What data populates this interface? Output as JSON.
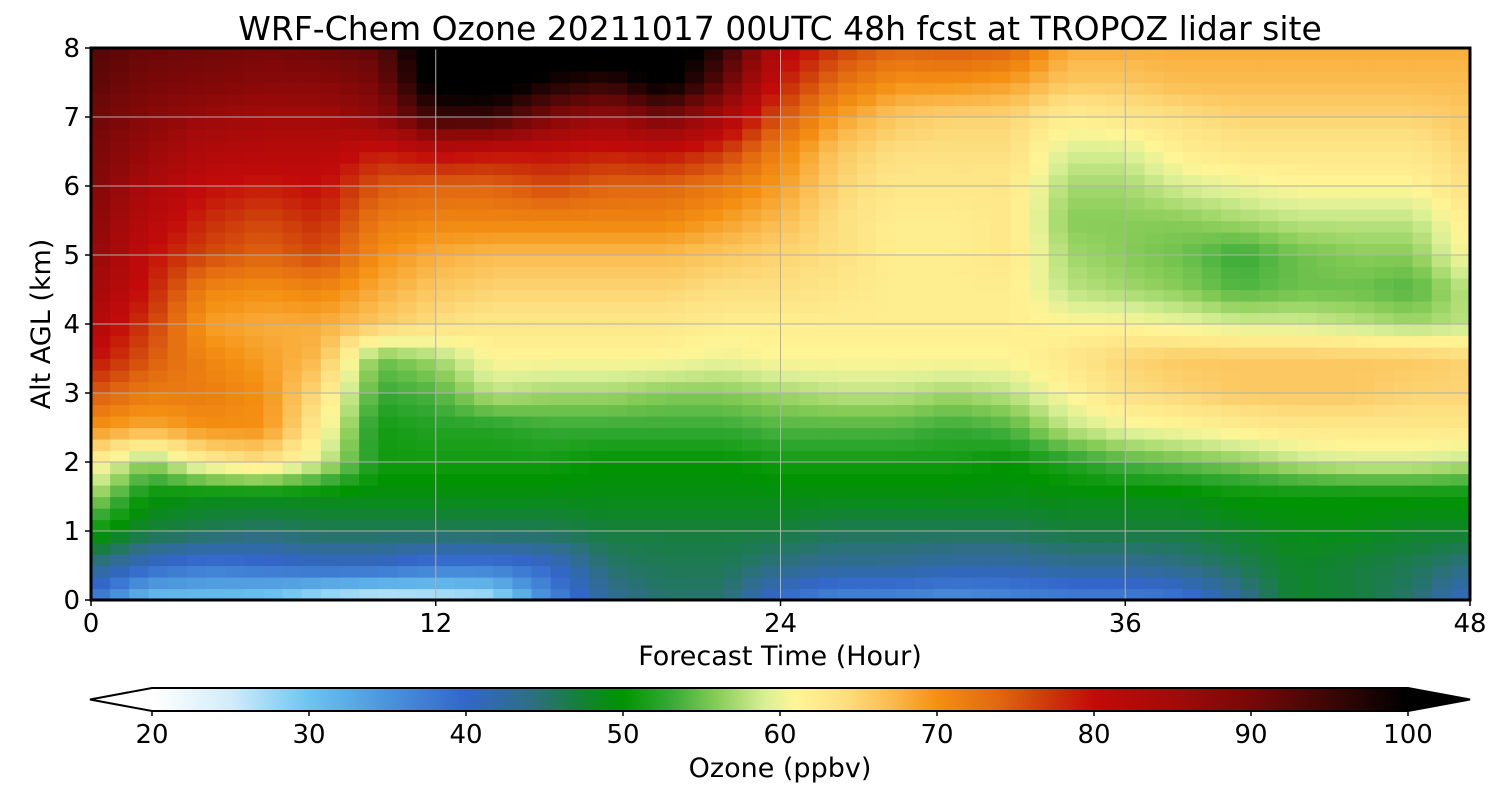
{
  "chart_data": {
    "type": "heatmap",
    "title": "WRF-Chem Ozone  20211017 00UTC 48h fcst at TROPOZ lidar site",
    "xlabel": "Forecast Time (Hour)",
    "ylabel": "Alt AGL (km)",
    "xlim": [
      0,
      48
    ],
    "ylim": [
      0,
      8
    ],
    "x_ticks": [
      "0",
      "12",
      "24",
      "36",
      "48"
    ],
    "y_ticks": [
      "0",
      "1",
      "2",
      "3",
      "4",
      "5",
      "6",
      "7",
      "8"
    ],
    "grid": true,
    "x": [
      0,
      2,
      4,
      6,
      8,
      10,
      12,
      14,
      16,
      18,
      20,
      22,
      24,
      26,
      28,
      30,
      32,
      34,
      36,
      38,
      40,
      42,
      44,
      46,
      48
    ],
    "y": [
      0,
      0.5,
      1,
      1.5,
      2,
      2.5,
      3,
      3.5,
      4,
      4.5,
      5,
      5.5,
      6,
      6.5,
      7,
      7.5,
      8
    ],
    "z": [
      [
        38,
        30,
        30,
        29,
        26,
        24,
        25,
        26,
        36,
        43,
        45,
        45,
        39,
        36,
        36,
        35,
        36,
        37,
        37,
        38,
        43,
        48,
        47,
        45,
        40
      ],
      [
        44,
        40,
        38,
        39,
        40,
        40,
        38,
        38,
        40,
        45,
        46,
        46,
        44,
        43,
        43,
        42,
        42,
        43,
        43,
        44,
        46,
        48,
        47,
        46,
        44
      ],
      [
        51,
        47,
        46,
        45,
        46,
        46,
        46,
        46,
        46,
        47,
        47,
        47,
        47,
        46,
        46,
        46,
        46,
        47,
        47,
        47,
        48,
        49,
        49,
        48,
        48
      ],
      [
        57,
        50,
        49,
        49,
        49,
        49,
        49,
        49,
        49,
        49,
        49,
        49,
        49,
        49,
        49,
        49,
        49,
        49,
        49,
        49,
        50,
        50,
        50,
        50,
        50
      ],
      [
        62,
        56,
        62,
        64,
        59,
        51,
        51,
        51,
        51,
        50,
        50,
        50,
        51,
        51,
        51,
        51,
        50,
        52,
        54,
        55,
        56,
        58,
        59,
        59,
        58
      ],
      [
        70,
        68,
        70,
        70,
        62,
        51,
        52,
        52,
        53,
        53,
        53,
        53,
        54,
        54,
        54,
        53,
        54,
        58,
        60,
        61,
        62,
        63,
        63,
        63,
        63
      ],
      [
        75,
        72,
        72,
        70,
        64,
        53,
        54,
        58,
        57,
        57,
        56,
        56,
        57,
        58,
        58,
        57,
        58,
        61,
        64,
        65,
        66,
        66,
        66,
        65,
        65
      ],
      [
        80,
        75,
        71,
        69,
        67,
        55,
        57,
        61,
        61,
        61,
        61,
        60,
        61,
        61,
        61,
        61,
        61,
        63,
        65,
        66,
        66,
        66,
        66,
        66,
        65
      ],
      [
        83,
        77,
        69,
        68,
        68,
        66,
        64,
        63,
        63,
        63,
        63,
        62,
        62,
        62,
        62,
        62,
        62,
        61,
        61,
        60,
        59,
        59,
        58,
        57,
        58
      ],
      [
        85,
        79,
        71,
        70,
        71,
        68,
        66,
        65,
        65,
        65,
        65,
        64,
        64,
        63,
        62,
        62,
        62,
        58,
        57,
        56,
        54,
        55,
        55,
        54,
        58
      ],
      [
        87,
        80,
        76,
        74,
        76,
        70,
        68,
        67,
        67,
        67,
        67,
        66,
        65,
        64,
        62,
        62,
        63,
        57,
        56,
        55,
        53,
        55,
        56,
        56,
        61
      ],
      [
        88,
        82,
        78,
        76,
        78,
        72,
        71,
        71,
        71,
        71,
        71,
        69,
        67,
        64,
        62,
        62,
        63,
        56,
        56,
        56,
        57,
        58,
        58,
        58,
        62
      ],
      [
        89,
        84,
        80,
        79,
        80,
        75,
        74,
        74,
        76,
        74,
        74,
        72,
        69,
        65,
        63,
        63,
        63,
        57,
        57,
        59,
        60,
        61,
        61,
        61,
        64
      ],
      [
        90,
        86,
        83,
        82,
        82,
        79,
        81,
        80,
        80,
        79,
        80,
        77,
        71,
        66,
        64,
        64,
        64,
        59,
        59,
        62,
        63,
        63,
        63,
        63,
        65
      ],
      [
        91,
        88,
        86,
        85,
        85,
        87,
        95,
        95,
        89,
        86,
        90,
        84,
        75,
        69,
        66,
        65,
        65,
        62,
        63,
        64,
        65,
        65,
        65,
        65,
        66
      ],
      [
        92,
        90,
        89,
        88,
        88,
        90,
        102,
        103,
        98,
        96,
        101,
        92,
        79,
        73,
        70,
        70,
        69,
        66,
        66,
        67,
        67,
        67,
        67,
        67,
        67
      ],
      [
        93,
        91,
        91,
        90,
        91,
        92,
        104,
        105,
        104,
        103,
        105,
        96,
        82,
        77,
        74,
        75,
        74,
        68,
        68,
        68,
        68,
        68,
        68,
        68,
        68
      ]
    ],
    "colorbar": {
      "label": "Ozone  (ppbv)",
      "min": 20,
      "max": 100,
      "extend": "both",
      "tick_labels": [
        "20",
        "30",
        "40",
        "50",
        "60",
        "70",
        "80",
        "90",
        "100"
      ],
      "tick_values": [
        20,
        30,
        40,
        50,
        60,
        70,
        80,
        90,
        100
      ],
      "color_stops": [
        [
          20,
          "#ffffff"
        ],
        [
          25,
          "#d2ecfa"
        ],
        [
          30,
          "#6cc4f0"
        ],
        [
          35,
          "#4a94dc"
        ],
        [
          40,
          "#3366c9"
        ],
        [
          44,
          "#2f6e86"
        ],
        [
          47,
          "#167f3c"
        ],
        [
          50,
          "#009400"
        ],
        [
          53,
          "#35a935"
        ],
        [
          56,
          "#88cc58"
        ],
        [
          59,
          "#d8ef95"
        ],
        [
          61,
          "#fff596"
        ],
        [
          64,
          "#fde082"
        ],
        [
          67,
          "#fbbc50"
        ],
        [
          70,
          "#f49012"
        ],
        [
          74,
          "#e06610"
        ],
        [
          77,
          "#cc3a0a"
        ],
        [
          80,
          "#c30a0a"
        ],
        [
          85,
          "#a30a0a"
        ],
        [
          90,
          "#780808"
        ],
        [
          95,
          "#3c0606"
        ],
        [
          100,
          "#000000"
        ]
      ]
    }
  }
}
